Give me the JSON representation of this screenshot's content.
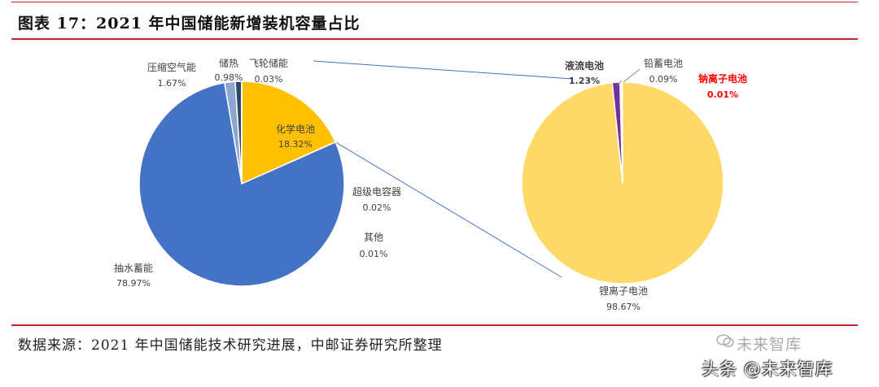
{
  "title": "图表 17：2021 年中国储能新增装机容量占比",
  "source": "数据来源：2021 年中国储能技术研究进展，中邮证券研究所整理",
  "watermark": {
    "top": "未来智库",
    "bottom": "头条 @未来智库"
  },
  "colors": {
    "rule": "#c0272d",
    "pumped": "#4472c4",
    "chem": "#ffc000",
    "storage_heat": "#2f4565",
    "compressed_air": "#8da6cf",
    "flywheel": "#70ad47",
    "lithium": "#ffd966",
    "flow": "#7030a0",
    "lead": "#404040",
    "sodium_label": "#ff0000",
    "connector": "#4472c4"
  },
  "chart_data": [
    {
      "type": "pie",
      "categories": [
        "化学电池",
        "超级电容器",
        "其他",
        "抽水蓄能",
        "压缩空气能",
        "储热",
        "飞轮储能"
      ],
      "values": [
        18.32,
        0.02,
        0.01,
        78.97,
        1.67,
        0.98,
        0.03
      ],
      "labels": [
        "化学电池",
        "超级电容器",
        "其他",
        "抽水蓄能",
        "压缩空气能",
        "储热",
        "飞轮储能"
      ],
      "value_labels": [
        "18.32%",
        "0.02%",
        "0.01%",
        "78.97%",
        "1.67%",
        "0.98%",
        "0.03%"
      ]
    },
    {
      "type": "pie",
      "categories": [
        "锂离子电池",
        "液流电池",
        "铅蓄电池",
        "钠离子电池"
      ],
      "values": [
        98.67,
        1.23,
        0.09,
        0.01
      ],
      "labels": [
        "锂离子电池",
        "液流电池",
        "铅蓄电池",
        "钠离子电池"
      ],
      "value_labels": [
        "98.67%",
        "1.23%",
        "0.09%",
        "0.01%"
      ]
    }
  ]
}
